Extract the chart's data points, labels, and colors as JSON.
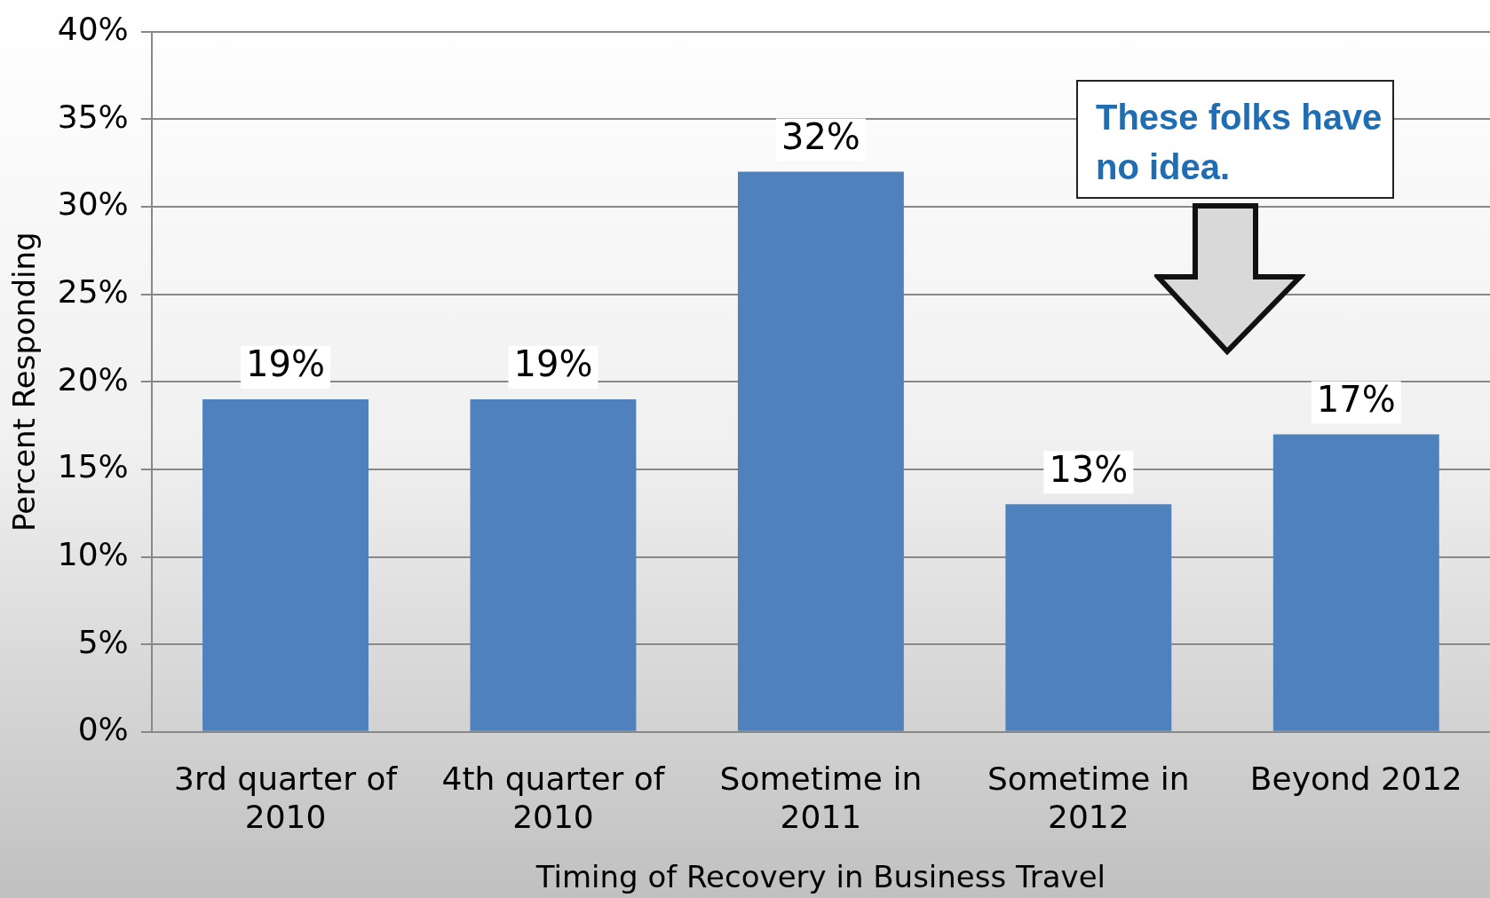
{
  "chart_data": {
    "type": "bar",
    "xlabel": "Timing of Recovery in Business Travel",
    "ylabel": "Percent Responding",
    "categories": [
      "3rd quarter of 2010",
      "4th quarter of 2010",
      "Sometime in 2011",
      "Sometime in 2012",
      "Beyond 2012"
    ],
    "values": [
      19,
      19,
      32,
      13,
      17
    ],
    "value_labels": [
      "19%",
      "19%",
      "32%",
      "13%",
      "17%"
    ],
    "color": "#4f81bd",
    "ylim": [
      0,
      40
    ],
    "yticks": [
      {
        "value": 0,
        "label": "0%"
      },
      {
        "value": 5,
        "label": "5%"
      },
      {
        "value": 10,
        "label": "10%"
      },
      {
        "value": 15,
        "label": "15%"
      },
      {
        "value": 20,
        "label": "20%"
      },
      {
        "value": 25,
        "label": "25%"
      },
      {
        "value": 30,
        "label": "30%"
      },
      {
        "value": 35,
        "label": "35%"
      },
      {
        "value": 40,
        "label": "40%"
      }
    ],
    "grid": "y",
    "legend": false,
    "annotations": [
      "These folks have no idea."
    ]
  }
}
